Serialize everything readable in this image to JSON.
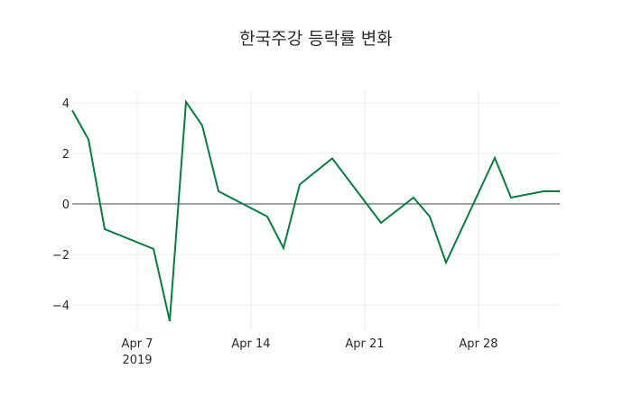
{
  "chart_data": {
    "type": "line",
    "title": "한국주강 등락률 변화",
    "xlabel": "",
    "ylabel": "",
    "x": [
      "2019-04-03",
      "2019-04-04",
      "2019-04-05",
      "2019-04-08",
      "2019-04-09",
      "2019-04-10",
      "2019-04-11",
      "2019-04-12",
      "2019-04-15",
      "2019-04-16",
      "2019-04-17",
      "2019-04-19",
      "2019-04-22",
      "2019-04-24",
      "2019-04-25",
      "2019-04-26",
      "2019-04-29",
      "2019-04-30",
      "2019-05-02",
      "2019-05-03"
    ],
    "series": [
      {
        "name": "등락률",
        "color": "#0a7d3e",
        "values": [
          3.7,
          2.55,
          -1.0,
          -1.78,
          -4.64,
          4.04,
          3.1,
          0.5,
          -0.5,
          -1.75,
          0.77,
          1.8,
          -0.75,
          0.25,
          -0.5,
          -2.32,
          1.82,
          0.25,
          0.5,
          0.5
        ]
      }
    ],
    "ylim": [
      -5,
      4.5
    ],
    "yticks": [
      -4,
      -2,
      0,
      2,
      4
    ],
    "ytick_labels": [
      "−4",
      "−2",
      "0",
      "2",
      "4"
    ],
    "xticks": [
      "2019-04-07",
      "2019-04-14",
      "2019-04-21",
      "2019-04-28"
    ],
    "xtick_labels": [
      "Apr 7",
      "Apr 14",
      "Apr 21",
      "Apr 28"
    ],
    "xtick_sublabel": "2019",
    "grid": true,
    "zeroline": true
  }
}
